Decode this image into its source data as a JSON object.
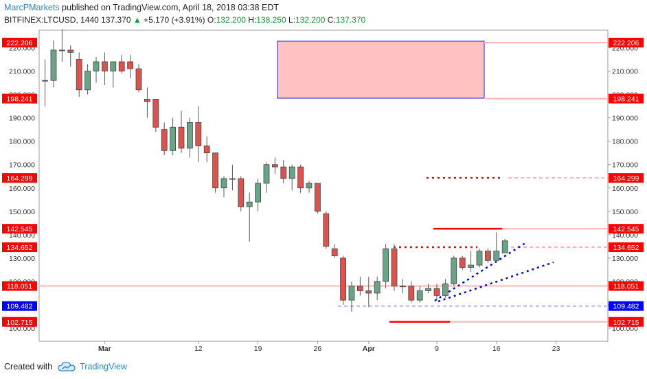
{
  "header": {
    "author": "MarcPMarkets",
    "published": " published on TradingView.com, April 18, 2018 03:38 EDT",
    "symbol": "BITFINEX:LTCUSD, 1440",
    "last": "137.370",
    "change_arrow": "▲",
    "change": "+5.170 (+3.91%)",
    "o_label": "O:",
    "o_val": "132.200",
    "h_label": "H:",
    "h_val": "138.250",
    "l_label": "L:",
    "l_val": "132.200",
    "c_label": "C:",
    "c_val": "137.370"
  },
  "footer": {
    "created_with": "Created with",
    "brand": "TradingView"
  },
  "colors": {
    "up": "#6aa387",
    "down": "#d9534f",
    "level_red": "#ff0000",
    "level_blue": "#0000ff",
    "zone_fill": "#ffc1c1",
    "zone_border": "#1a1ae6"
  },
  "chart_data": {
    "type": "candlestick",
    "ylim": [
      95,
      228
    ],
    "y_ticks": [
      "100.000",
      "110.000",
      "120.000",
      "130.000",
      "140.000",
      "150.000",
      "160.000",
      "170.000",
      "180.000",
      "190.000",
      "200.000",
      "210.000",
      "220.000"
    ],
    "x_ticks": [
      "Mar",
      "12",
      "19",
      "26",
      "Apr",
      "9",
      "16",
      "23"
    ],
    "grid": false,
    "candles": [
      {
        "date": "2018-02-22",
        "o": 206,
        "h": 215,
        "l": 195,
        "c": 206
      },
      {
        "date": "2018-02-23",
        "o": 206,
        "h": 223,
        "l": 203,
        "c": 219
      },
      {
        "date": "2018-02-24",
        "o": 219,
        "h": 228,
        "l": 214,
        "c": 219
      },
      {
        "date": "2018-02-25",
        "o": 219,
        "h": 221,
        "l": 212,
        "c": 218
      },
      {
        "date": "2018-02-26",
        "o": 215,
        "h": 218,
        "l": 199,
        "c": 202
      },
      {
        "date": "2018-02-27",
        "o": 202,
        "h": 213,
        "l": 200,
        "c": 210
      },
      {
        "date": "2018-02-28",
        "o": 210,
        "h": 216,
        "l": 205,
        "c": 214
      },
      {
        "date": "2018-03-01",
        "o": 214,
        "h": 218,
        "l": 204,
        "c": 210
      },
      {
        "date": "2018-03-02",
        "o": 210,
        "h": 214,
        "l": 203,
        "c": 214
      },
      {
        "date": "2018-03-03",
        "o": 214,
        "h": 217,
        "l": 209,
        "c": 210
      },
      {
        "date": "2018-03-04",
        "o": 214,
        "h": 217,
        "l": 207,
        "c": 211
      },
      {
        "date": "2018-03-05",
        "o": 211,
        "h": 213,
        "l": 201,
        "c": 202
      },
      {
        "date": "2018-03-06",
        "o": 198,
        "h": 203,
        "l": 190,
        "c": 197
      },
      {
        "date": "2018-03-07",
        "o": 198,
        "h": 198,
        "l": 184,
        "c": 186
      },
      {
        "date": "2018-03-08",
        "o": 185,
        "h": 188,
        "l": 174,
        "c": 176
      },
      {
        "date": "2018-03-09",
        "o": 176,
        "h": 190,
        "l": 174,
        "c": 186
      },
      {
        "date": "2018-03-10",
        "o": 186,
        "h": 193,
        "l": 175,
        "c": 177
      },
      {
        "date": "2018-03-11",
        "o": 177,
        "h": 190,
        "l": 173,
        "c": 188
      },
      {
        "date": "2018-03-12",
        "o": 188,
        "h": 195,
        "l": 171,
        "c": 178
      },
      {
        "date": "2018-03-13",
        "o": 178,
        "h": 182,
        "l": 171,
        "c": 175
      },
      {
        "date": "2018-03-14",
        "o": 175,
        "h": 175,
        "l": 158,
        "c": 160
      },
      {
        "date": "2018-03-15",
        "o": 160,
        "h": 165,
        "l": 156,
        "c": 164
      },
      {
        "date": "2018-03-16",
        "o": 164,
        "h": 170,
        "l": 159,
        "c": 164
      },
      {
        "date": "2018-03-17",
        "o": 164,
        "h": 165,
        "l": 150,
        "c": 152
      },
      {
        "date": "2018-03-18",
        "o": 152,
        "h": 158,
        "l": 137,
        "c": 154
      },
      {
        "date": "2018-03-19",
        "o": 154,
        "h": 164,
        "l": 150,
        "c": 162
      },
      {
        "date": "2018-03-20",
        "o": 162,
        "h": 171,
        "l": 158,
        "c": 170
      },
      {
        "date": "2018-03-21",
        "o": 170,
        "h": 173,
        "l": 166,
        "c": 169
      },
      {
        "date": "2018-03-22",
        "o": 169,
        "h": 172,
        "l": 162,
        "c": 164
      },
      {
        "date": "2018-03-23",
        "o": 164,
        "h": 170,
        "l": 159,
        "c": 169
      },
      {
        "date": "2018-03-24",
        "o": 169,
        "h": 170,
        "l": 158,
        "c": 160
      },
      {
        "date": "2018-03-25",
        "o": 160,
        "h": 163,
        "l": 158,
        "c": 162
      },
      {
        "date": "2018-03-26",
        "o": 162,
        "h": 162,
        "l": 149,
        "c": 150
      },
      {
        "date": "2018-03-27",
        "o": 149,
        "h": 150,
        "l": 134,
        "c": 135
      },
      {
        "date": "2018-03-28",
        "o": 134,
        "h": 136,
        "l": 130,
        "c": 131
      },
      {
        "date": "2018-03-29",
        "o": 130,
        "h": 131,
        "l": 110,
        "c": 112
      },
      {
        "date": "2018-03-30",
        "o": 112,
        "h": 120,
        "l": 107,
        "c": 118
      },
      {
        "date": "2018-03-31",
        "o": 118,
        "h": 122,
        "l": 114,
        "c": 116
      },
      {
        "date": "2018-04-01",
        "o": 116,
        "h": 122,
        "l": 109,
        "c": 115
      },
      {
        "date": "2018-04-02",
        "o": 115,
        "h": 122,
        "l": 112,
        "c": 120
      },
      {
        "date": "2018-04-03",
        "o": 120,
        "h": 136,
        "l": 117,
        "c": 134
      },
      {
        "date": "2018-04-04",
        "o": 134,
        "h": 136,
        "l": 116,
        "c": 118
      },
      {
        "date": "2018-04-05",
        "o": 118,
        "h": 121,
        "l": 115,
        "c": 118
      },
      {
        "date": "2018-04-06",
        "o": 118,
        "h": 120,
        "l": 111,
        "c": 112
      },
      {
        "date": "2018-04-07",
        "o": 112,
        "h": 118,
        "l": 111,
        "c": 116
      },
      {
        "date": "2018-04-08",
        "o": 116,
        "h": 119,
        "l": 115,
        "c": 117
      },
      {
        "date": "2018-04-09",
        "o": 117,
        "h": 119,
        "l": 112,
        "c": 114
      },
      {
        "date": "2018-04-10",
        "o": 114,
        "h": 121,
        "l": 113,
        "c": 119
      },
      {
        "date": "2018-04-11",
        "o": 119,
        "h": 131,
        "l": 118,
        "c": 130
      },
      {
        "date": "2018-04-12",
        "o": 130,
        "h": 131,
        "l": 125,
        "c": 126
      },
      {
        "date": "2018-04-13",
        "o": 126,
        "h": 133,
        "l": 124,
        "c": 127
      },
      {
        "date": "2018-04-14",
        "o": 127,
        "h": 134,
        "l": 126,
        "c": 133
      },
      {
        "date": "2018-04-15",
        "o": 133,
        "h": 134,
        "l": 128,
        "c": 129
      },
      {
        "date": "2018-04-16",
        "o": 129,
        "h": 141,
        "l": 128,
        "c": 133
      },
      {
        "date": "2018-04-17",
        "o": 132.2,
        "h": 138.25,
        "l": 132.2,
        "c": 137.37
      }
    ],
    "levels": [
      {
        "value": 222.206,
        "label": "222.206",
        "color": "#ff0000"
      },
      {
        "value": 198.241,
        "label": "198.241",
        "color": "#ff0000"
      },
      {
        "value": 164.299,
        "label": "164.299",
        "color": "#ff0000"
      },
      {
        "value": 142.545,
        "label": "142.545",
        "color": "#ff0000"
      },
      {
        "value": 134.652,
        "label": "134.652",
        "color": "#ff0000"
      },
      {
        "value": 118.051,
        "label": "118.051",
        "color": "#ff0000"
      },
      {
        "value": 109.482,
        "label": "109.482",
        "color": "#0000ff"
      },
      {
        "value": 102.715,
        "label": "102.715",
        "color": "#ff0000"
      }
    ]
  }
}
